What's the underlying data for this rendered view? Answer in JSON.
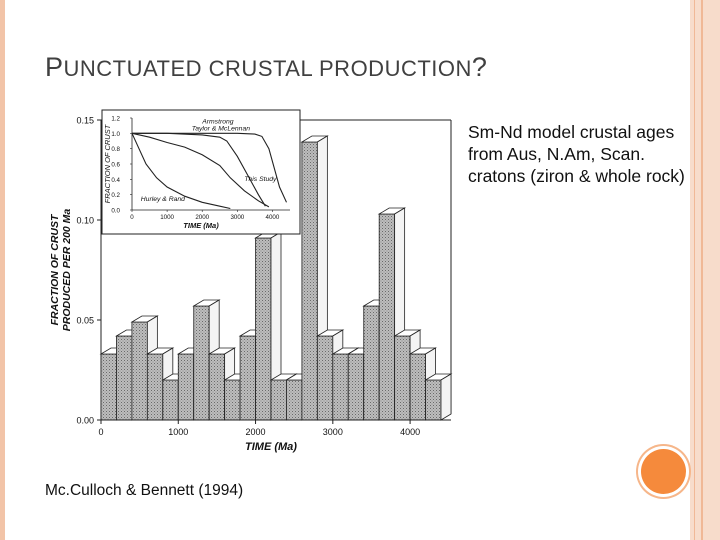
{
  "slide": {
    "title_initial": "P",
    "title_rest": "UNCTUATED CRUSTAL PRODUCTION",
    "title_end": "?",
    "side_text": "Sm-Nd model crustal ages from Aus, N.Am, Scan. cratons (ziron & whole rock)",
    "citation": "Mc.Culloch & Bennett (1994)",
    "accent_color": "#f58a3c"
  },
  "chart_data": [
    {
      "type": "bar",
      "xlabel": "TIME (Ma)",
      "ylabel": "FRACTION OF CRUST PRODUCED PER 200 Ma",
      "xticks": [
        0,
        1000,
        2000,
        3000,
        4000
      ],
      "xtick_labels": [
        "0",
        "1000",
        "2000",
        "3000",
        "4000"
      ],
      "yticks": [
        0,
        0.05,
        0.1,
        0.15
      ],
      "ytick_labels": [
        "0.00",
        "0.05",
        "0.10",
        "0.15"
      ],
      "xlim": [
        0,
        4400
      ],
      "ylim": [
        0,
        0.15
      ],
      "bin_width": 200,
      "bins": [
        {
          "start": 0,
          "value": 0.033
        },
        {
          "start": 200,
          "value": 0.042
        },
        {
          "start": 400,
          "value": 0.049
        },
        {
          "start": 600,
          "value": 0.033
        },
        {
          "start": 800,
          "value": 0.02
        },
        {
          "start": 1000,
          "value": 0.033
        },
        {
          "start": 1200,
          "value": 0.057
        },
        {
          "start": 1400,
          "value": 0.033
        },
        {
          "start": 1600,
          "value": 0.02
        },
        {
          "start": 1800,
          "value": 0.042
        },
        {
          "start": 2000,
          "value": 0.091
        },
        {
          "start": 2200,
          "value": 0.02
        },
        {
          "start": 2400,
          "value": 0.02
        },
        {
          "start": 2600,
          "value": 0.139
        },
        {
          "start": 2800,
          "value": 0.042
        },
        {
          "start": 3000,
          "value": 0.033
        },
        {
          "start": 3200,
          "value": 0.033
        },
        {
          "start": 3400,
          "value": 0.057
        },
        {
          "start": 3600,
          "value": 0.103
        },
        {
          "start": 3800,
          "value": 0.042
        },
        {
          "start": 4000,
          "value": 0.033
        },
        {
          "start": 4200,
          "value": 0.02
        }
      ]
    },
    {
      "type": "line",
      "xlabel": "TIME (Ma)",
      "ylabel": "FRACTION OF CRUST",
      "xticks": [
        0,
        1000,
        2000,
        3000,
        4000
      ],
      "xtick_labels": [
        "0",
        "1000",
        "2000",
        "3000",
        "4000"
      ],
      "yticks": [
        0,
        0.2,
        0.4,
        0.6,
        0.8,
        1.0,
        1.2
      ],
      "ytick_labels": [
        "0.0",
        "0.2",
        "0.4",
        "0.6",
        "0.8",
        "1.0",
        "1.2"
      ],
      "xlim": [
        0,
        4500
      ],
      "ylim": [
        0,
        1.2
      ],
      "series": [
        {
          "name": "Armstrong",
          "x": [
            0,
            1000,
            2000,
            3000,
            3500,
            3700,
            3900,
            4200,
            4400
          ],
          "y": [
            1.0,
            1.0,
            1.0,
            1.0,
            0.99,
            0.96,
            0.8,
            0.3,
            0.1
          ]
        },
        {
          "name": "Taylor & McLennan",
          "x": [
            0,
            1000,
            2000,
            2500,
            2700,
            3000,
            3300,
            3600,
            3800
          ],
          "y": [
            1.0,
            1.0,
            0.98,
            0.95,
            0.9,
            0.7,
            0.45,
            0.2,
            0.05
          ]
        },
        {
          "name": "This Study",
          "x": [
            0,
            500,
            1000,
            1500,
            2000,
            2500,
            2800,
            3200,
            3600,
            3900
          ],
          "y": [
            1.0,
            0.95,
            0.88,
            0.82,
            0.72,
            0.58,
            0.42,
            0.25,
            0.12,
            0.04
          ]
        },
        {
          "name": "Hurley & Rand",
          "x": [
            0,
            200,
            400,
            700,
            1000,
            1500,
            2000,
            2500,
            2800
          ],
          "y": [
            1.0,
            0.8,
            0.6,
            0.42,
            0.3,
            0.18,
            0.1,
            0.05,
            0.02
          ]
        }
      ],
      "annotations": [
        "Armstrong",
        "Taylor & McLennan",
        "This Study",
        "Hurley & Rand"
      ]
    }
  ]
}
